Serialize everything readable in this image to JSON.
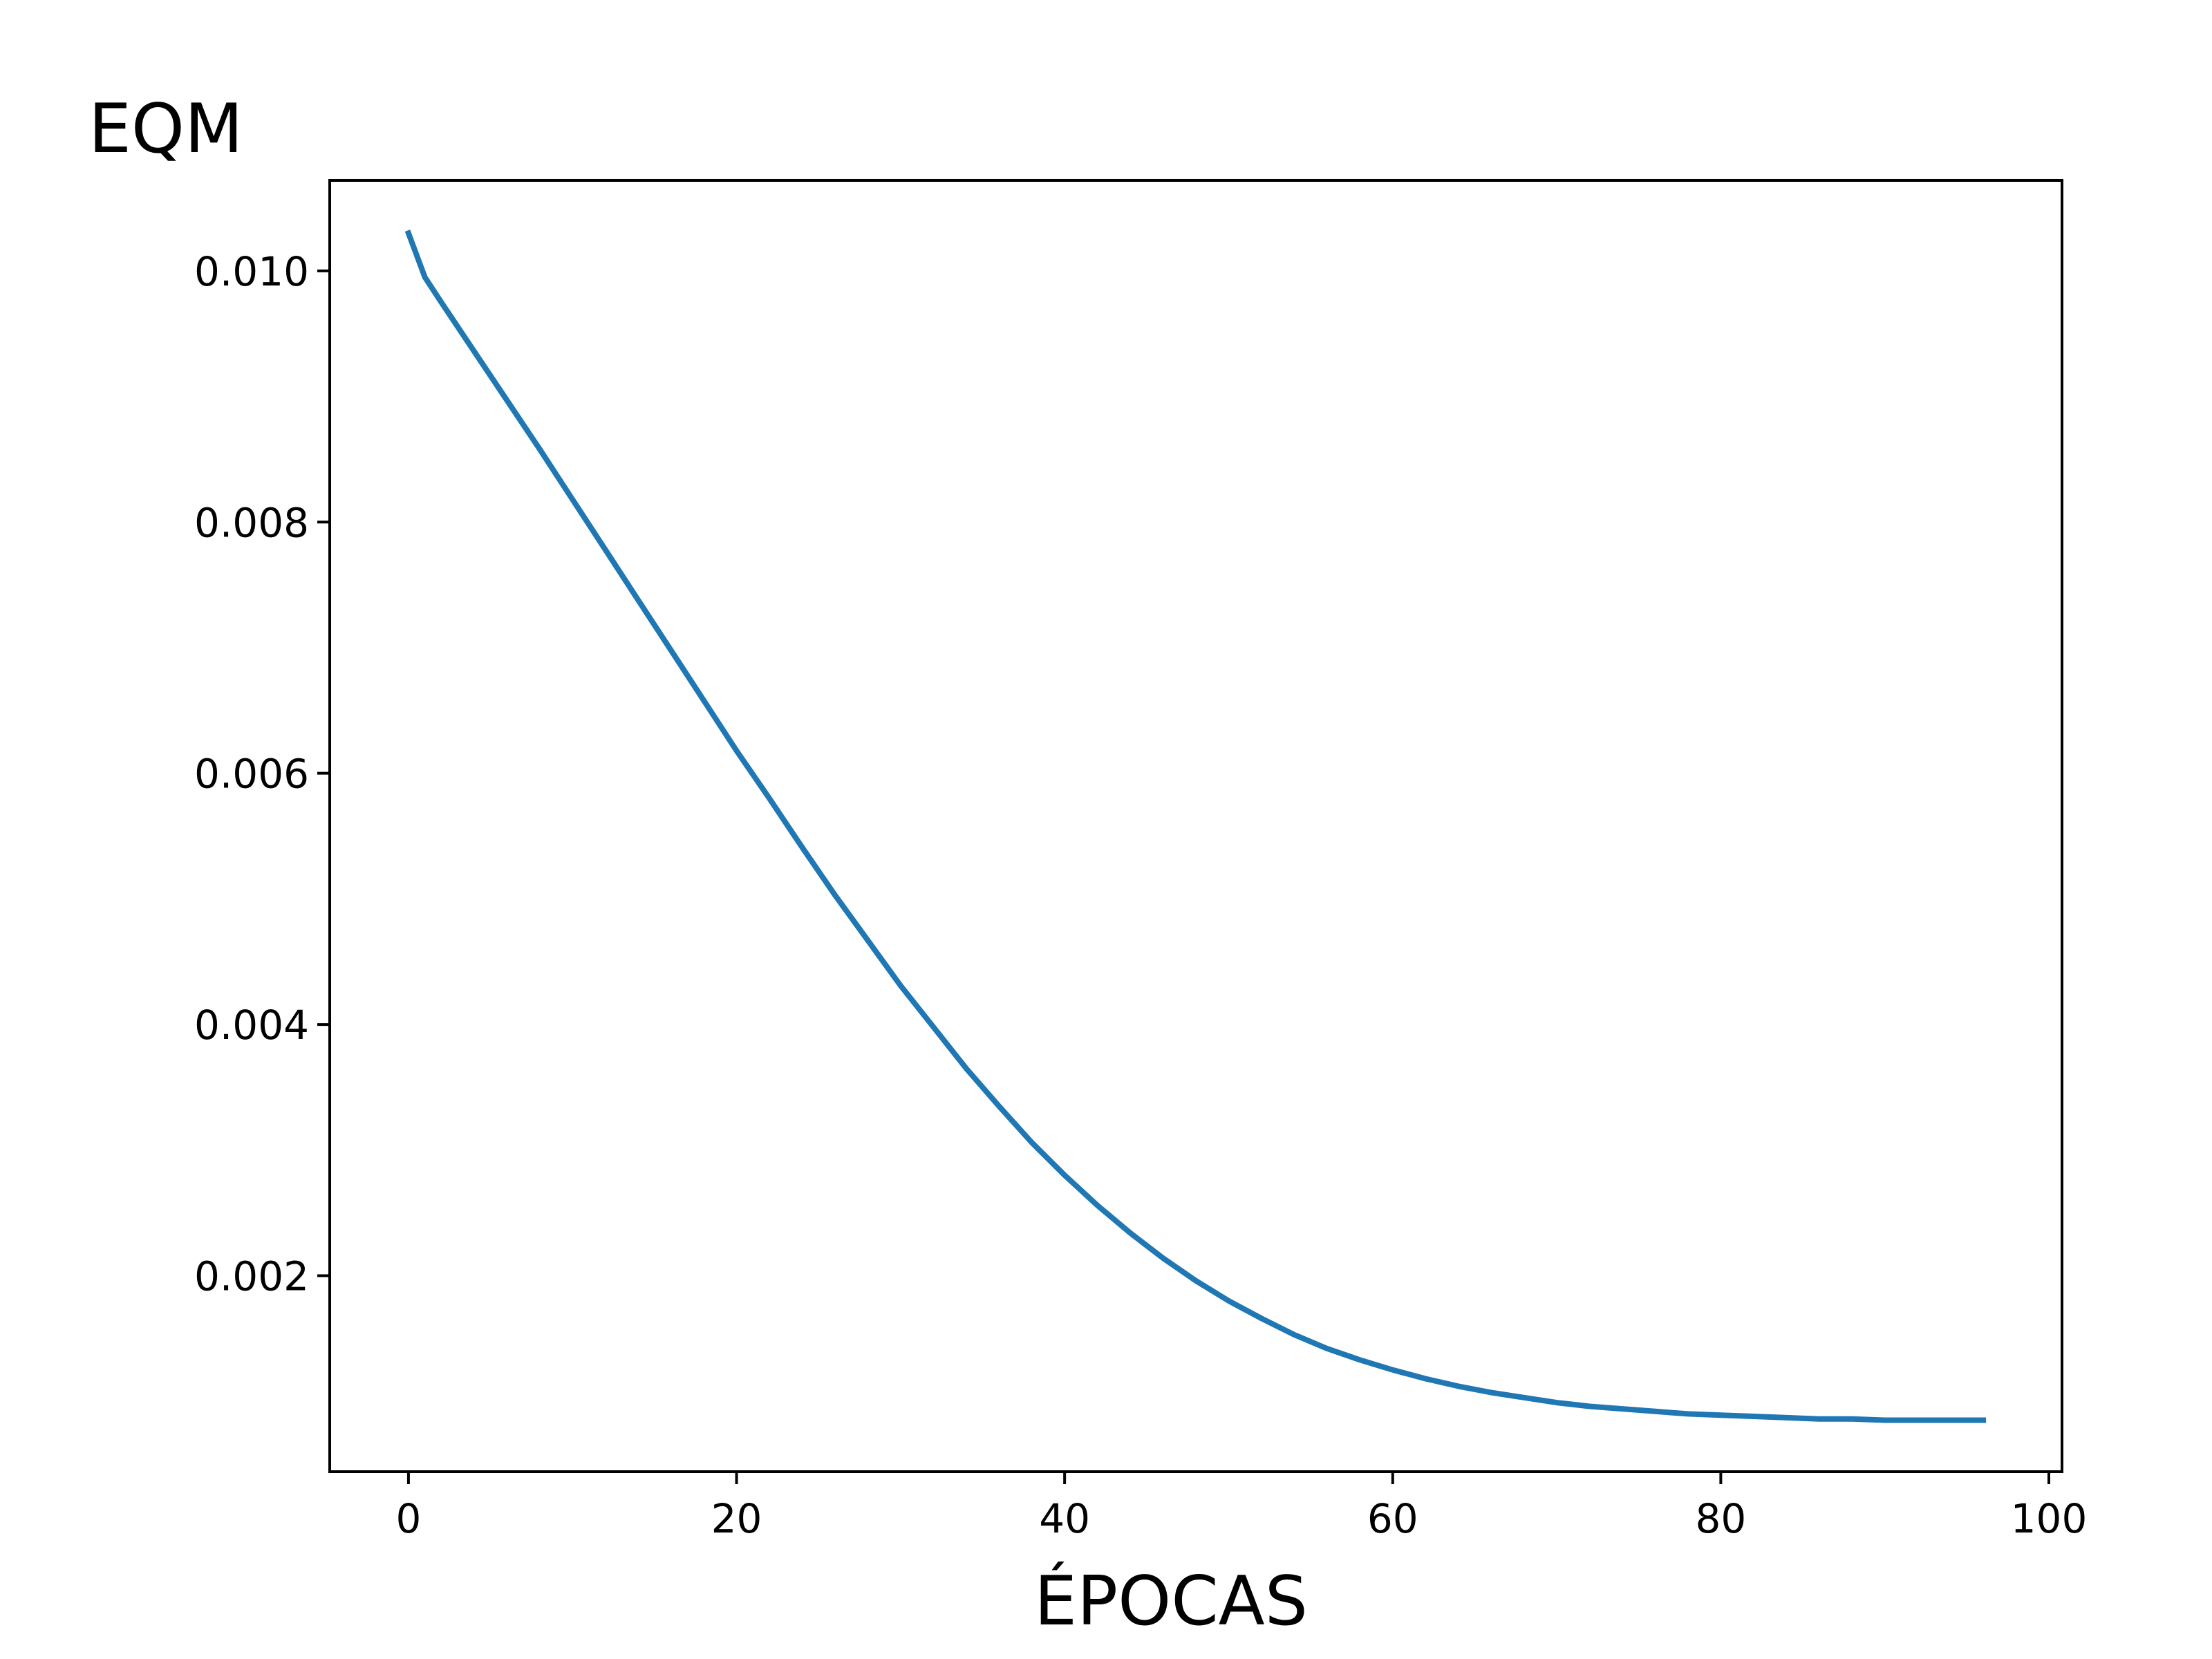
{
  "chart_data": {
    "type": "line",
    "title": "",
    "xlabel": "ÉPOCAS",
    "ylabel": "EQM",
    "xlim": [
      -4.8,
      100.8
    ],
    "ylim": [
      0.00044,
      0.01072
    ],
    "x_ticks": [
      0,
      20,
      40,
      60,
      80,
      100
    ],
    "y_ticks": [
      0.002,
      0.004,
      0.006,
      0.008,
      0.01
    ],
    "x_tick_labels": [
      "0",
      "20",
      "40",
      "60",
      "80",
      "100"
    ],
    "y_tick_labels": [
      "0.002",
      "0.004",
      "0.006",
      "0.008",
      "0.010"
    ],
    "grid": false,
    "legend": false,
    "line_color": "#1f77b4",
    "series": [
      {
        "x": [
          0,
          1,
          2,
          4,
          6,
          8,
          10,
          12,
          14,
          16,
          18,
          20,
          22,
          24,
          26,
          28,
          30,
          32,
          34,
          36,
          38,
          40,
          42,
          44,
          46,
          48,
          50,
          52,
          54,
          56,
          58,
          60,
          62,
          64,
          66,
          68,
          70,
          72,
          74,
          76,
          78,
          80,
          82,
          84,
          86,
          88,
          90,
          92,
          94,
          96
        ],
        "values": [
          0.0103,
          0.00995,
          0.00975,
          0.00936,
          0.00897,
          0.00858,
          0.00818,
          0.00778,
          0.00738,
          0.00698,
          0.00658,
          0.00618,
          0.0058,
          0.00541,
          0.00503,
          0.00467,
          0.00431,
          0.00398,
          0.00365,
          0.00335,
          0.00306,
          0.0028,
          0.00256,
          0.00234,
          0.00214,
          0.00196,
          0.0018,
          0.00166,
          0.00153,
          0.00142,
          0.00133,
          0.00125,
          0.00118,
          0.00112,
          0.00107,
          0.00103,
          0.00099,
          0.00096,
          0.00094,
          0.00092,
          0.0009,
          0.00089,
          0.00088,
          0.00087,
          0.00086,
          0.00086,
          0.00085,
          0.00085,
          0.00085,
          0.00085
        ]
      }
    ]
  }
}
